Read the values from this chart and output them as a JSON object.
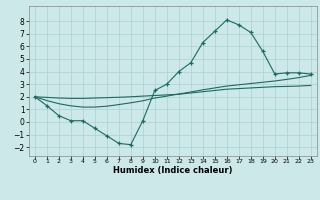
{
  "xlabel": "Humidex (Indice chaleur)",
  "background_color": "#cce8e8",
  "grid_color": "#aad0d0",
  "line_color": "#1a6b60",
  "xlim": [
    -0.5,
    23.5
  ],
  "ylim": [
    -2.7,
    9.2
  ],
  "xticks": [
    0,
    1,
    2,
    3,
    4,
    5,
    6,
    7,
    8,
    9,
    10,
    11,
    12,
    13,
    14,
    15,
    16,
    17,
    18,
    19,
    20,
    21,
    22,
    23
  ],
  "yticks": [
    -2,
    -1,
    0,
    1,
    2,
    3,
    4,
    5,
    6,
    7,
    8
  ],
  "y_main": [
    2.0,
    1.3,
    0.5,
    0.1,
    0.1,
    -0.5,
    -1.1,
    -1.7,
    -1.8,
    0.1,
    2.5,
    3.0,
    4.0,
    4.7,
    6.3,
    7.2,
    8.1,
    7.7,
    7.1,
    5.6,
    3.8,
    3.9,
    3.9,
    3.8
  ],
  "y_upper": [
    2.0,
    1.95,
    1.9,
    1.87,
    1.87,
    1.9,
    1.93,
    1.96,
    2.0,
    2.05,
    2.1,
    2.15,
    2.2,
    2.3,
    2.4,
    2.5,
    2.6,
    2.65,
    2.7,
    2.75,
    2.8,
    2.82,
    2.85,
    2.9
  ],
  "y_lower": [
    2.0,
    1.7,
    1.45,
    1.28,
    1.18,
    1.18,
    1.25,
    1.38,
    1.52,
    1.68,
    1.9,
    2.05,
    2.22,
    2.38,
    2.55,
    2.7,
    2.85,
    2.95,
    3.05,
    3.15,
    3.25,
    3.38,
    3.52,
    3.7
  ]
}
